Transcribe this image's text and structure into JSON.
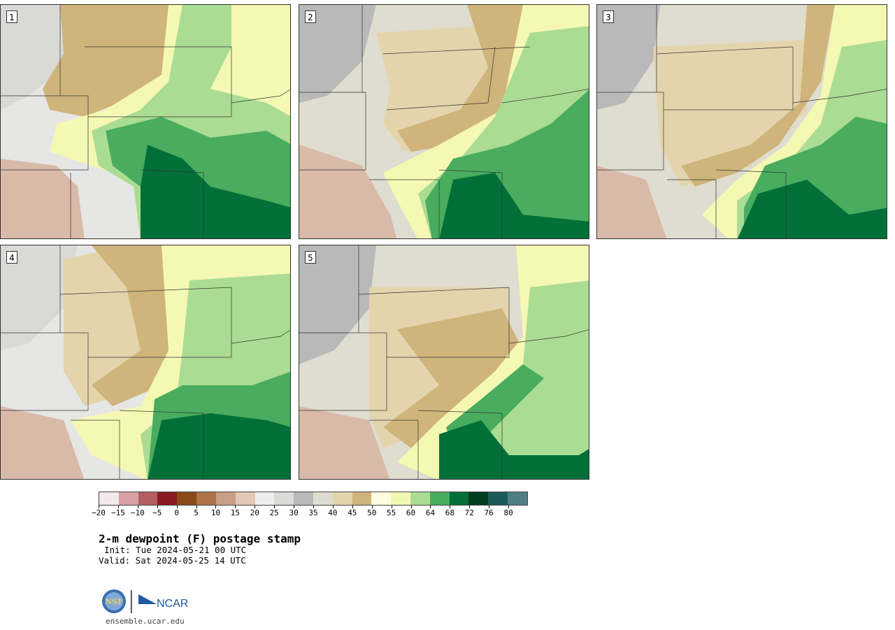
{
  "panels": [
    {
      "label": "1"
    },
    {
      "label": "2"
    },
    {
      "label": "3"
    },
    {
      "label": "4"
    },
    {
      "label": "5"
    }
  ],
  "colorbar": {
    "colors": [
      "#f3e8ea",
      "#d7a1a6",
      "#b45e63",
      "#8a1b22",
      "#8a4a17",
      "#ad7448",
      "#c89f84",
      "#e0c7b6",
      "#efefef",
      "#dadad6",
      "#b9b9b9",
      "#dfddd0",
      "#e4d4ac",
      "#cfb47b",
      "#fffde0",
      "#f5f8b3",
      "#abdc93",
      "#49ac5e",
      "#007038",
      "#003c1e",
      "#1b5b57",
      "#4f7f85"
    ],
    "tick_labels": [
      "−20",
      "−15",
      "−10",
      "−5",
      "0",
      "5",
      "10",
      "15",
      "20",
      "25",
      "30",
      "35",
      "40",
      "45",
      "50",
      "55",
      "60",
      "64",
      "68",
      "72",
      "76",
      "80"
    ]
  },
  "title": "2-m dewpoint (F) postage stamp",
  "init": "Init: Tue 2024-05-21 00 UTC",
  "valid": "Valid: Sat 2024-05-25 14 UTC",
  "logos": {
    "nsf": "NSF",
    "ncar": "NCAR"
  },
  "site": "ensemble.ucar.edu"
}
